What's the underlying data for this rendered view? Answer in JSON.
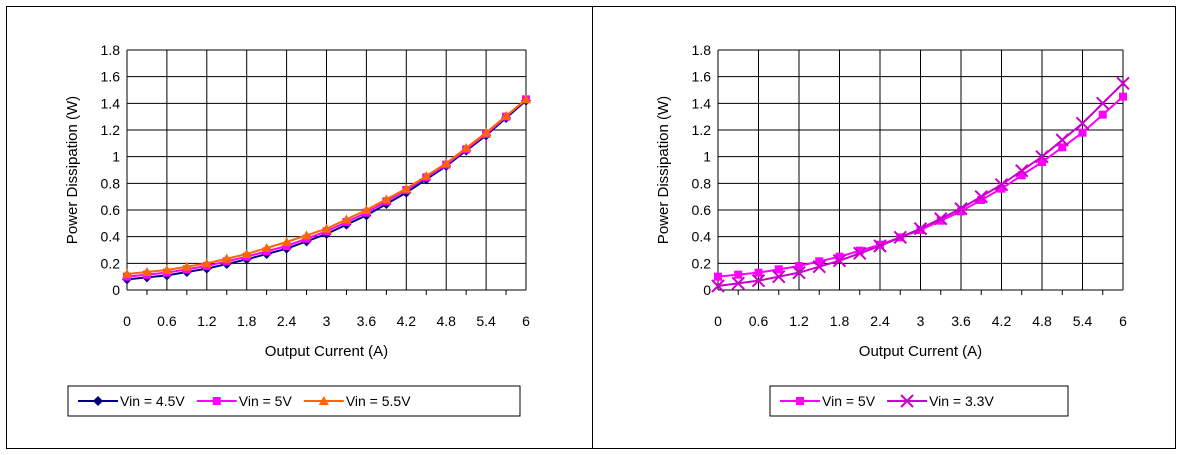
{
  "chart_data": [
    {
      "type": "line",
      "xlabel": "Output Current (A)",
      "ylabel": "Power Dissipation (W)",
      "xlim": [
        0,
        6
      ],
      "ylim": [
        0,
        1.8
      ],
      "xticks": [
        "0",
        "0.6",
        "1.2",
        "1.8",
        "2.4",
        "3",
        "3.6",
        "4.2",
        "4.8",
        "5.4",
        "6"
      ],
      "yticks": [
        "0",
        "0.2",
        "0.4",
        "0.6",
        "0.8",
        "1",
        "1.2",
        "1.4",
        "1.6",
        "1.8"
      ],
      "grid": true,
      "legend_position": "bottom",
      "series": [
        {
          "name": "Vin = 4.5V",
          "color": "#000080",
          "marker": "diamond",
          "x": [
            0,
            0.6,
            1.2,
            1.8,
            2.4,
            3,
            3.6,
            4.2,
            4.8,
            5.4,
            6
          ],
          "y": [
            0.08,
            0.11,
            0.16,
            0.23,
            0.31,
            0.42,
            0.56,
            0.73,
            0.93,
            1.16,
            1.42
          ]
        },
        {
          "name": "Vin = 5V",
          "color": "#FF00FF",
          "marker": "square",
          "x": [
            0,
            0.6,
            1.2,
            1.8,
            2.4,
            3,
            3.6,
            4.2,
            4.8,
            5.4,
            6
          ],
          "y": [
            0.1,
            0.13,
            0.18,
            0.25,
            0.33,
            0.44,
            0.58,
            0.75,
            0.94,
            1.17,
            1.43
          ]
        },
        {
          "name": "Vin = 5.5V",
          "color": "#FF6600",
          "marker": "triangle",
          "x": [
            0,
            0.6,
            1.2,
            1.8,
            2.4,
            3,
            3.6,
            4.2,
            4.8,
            5.4,
            6
          ],
          "y": [
            0.12,
            0.15,
            0.2,
            0.27,
            0.36,
            0.46,
            0.6,
            0.76,
            0.95,
            1.18,
            1.43
          ]
        }
      ]
    },
    {
      "type": "line",
      "xlabel": "Output Current (A)",
      "ylabel": "Power Dissipation (W)",
      "xlim": [
        0,
        6
      ],
      "ylim": [
        0,
        1.8
      ],
      "xticks": [
        "0",
        "0.6",
        "1.2",
        "1.8",
        "2.4",
        "3",
        "3.6",
        "4.2",
        "4.8",
        "5.4",
        "6"
      ],
      "yticks": [
        "0",
        "0.2",
        "0.4",
        "0.6",
        "0.8",
        "1",
        "1.2",
        "1.4",
        "1.6",
        "1.8"
      ],
      "grid": true,
      "legend_position": "bottom",
      "series": [
        {
          "name": "Vin = 5V",
          "color": "#FF00FF",
          "marker": "square",
          "x": [
            0,
            0.6,
            1.2,
            1.8,
            2.4,
            3,
            3.6,
            4.2,
            4.8,
            5.4,
            6
          ],
          "y": [
            0.1,
            0.13,
            0.18,
            0.25,
            0.34,
            0.45,
            0.59,
            0.76,
            0.96,
            1.18,
            1.45
          ]
        },
        {
          "name": "Vin = 3.3V",
          "color": "#CC00CC",
          "marker": "x",
          "x": [
            0,
            0.6,
            1.2,
            1.8,
            2.4,
            3,
            3.6,
            4.2,
            4.8,
            5.4,
            6
          ],
          "y": [
            0.03,
            0.07,
            0.13,
            0.22,
            0.33,
            0.46,
            0.61,
            0.79,
            1.0,
            1.25,
            1.55
          ]
        }
      ]
    }
  ]
}
